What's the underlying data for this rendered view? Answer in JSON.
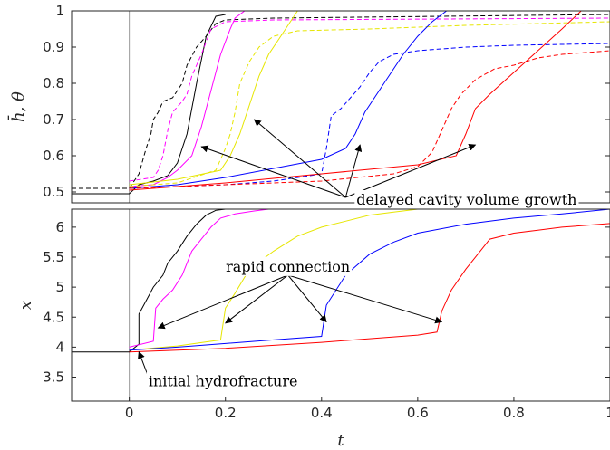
{
  "chart_data": [
    {
      "type": "line",
      "panel": "top",
      "xlabel": "",
      "ylabel": "h̄, θ",
      "xlim": [
        -0.12,
        1.0
      ],
      "ylim": [
        0.47,
        1.0
      ],
      "yticks": [
        0.5,
        0.6,
        0.7,
        0.8,
        0.9,
        1
      ],
      "ytick_labels": [
        "0.5",
        "0.6",
        "0.7",
        "0.8",
        "0.9",
        "1"
      ],
      "vline_x": 0,
      "series": [
        {
          "color": "#000000",
          "style": "solid",
          "x": [
            -0.12,
            0,
            0.02,
            0.05,
            0.08,
            0.1,
            0.12,
            0.14,
            0.16,
            0.18,
            0.2
          ],
          "y": [
            0.495,
            0.495,
            0.52,
            0.53,
            0.545,
            0.58,
            0.66,
            0.8,
            0.93,
            0.985,
            0.99
          ]
        },
        {
          "color": "#000000",
          "style": "dashed",
          "x": [
            -0.12,
            0,
            0.02,
            0.035,
            0.045,
            0.05,
            0.06,
            0.07,
            0.09,
            0.11,
            0.12,
            0.14,
            0.16,
            0.18,
            0.2,
            0.3,
            1.0
          ],
          "y": [
            0.51,
            0.51,
            0.55,
            0.62,
            0.66,
            0.7,
            0.72,
            0.75,
            0.76,
            0.8,
            0.85,
            0.9,
            0.93,
            0.965,
            0.975,
            0.98,
            0.99
          ]
        },
        {
          "color": "#ff00ff",
          "style": "solid",
          "x": [
            0,
            0.05,
            0.08,
            0.1,
            0.13,
            0.15,
            0.17,
            0.19,
            0.21,
            0.22,
            0.24
          ],
          "y": [
            0.515,
            0.52,
            0.54,
            0.56,
            0.6,
            0.68,
            0.78,
            0.88,
            0.95,
            0.98,
            1.0
          ]
        },
        {
          "color": "#ff00ff",
          "style": "dashed",
          "x": [
            0,
            0.05,
            0.06,
            0.07,
            0.08,
            0.09,
            0.11,
            0.12,
            0.13,
            0.15,
            0.17,
            0.2,
            0.3,
            1.0
          ],
          "y": [
            0.53,
            0.54,
            0.56,
            0.6,
            0.67,
            0.72,
            0.75,
            0.77,
            0.82,
            0.88,
            0.95,
            0.97,
            0.975,
            0.98
          ]
        },
        {
          "color": "#e6e600",
          "style": "solid",
          "x": [
            0,
            0.1,
            0.19,
            0.21,
            0.23,
            0.25,
            0.27,
            0.29,
            0.31,
            0.33,
            0.35
          ],
          "y": [
            0.52,
            0.535,
            0.56,
            0.6,
            0.66,
            0.74,
            0.82,
            0.88,
            0.92,
            0.96,
            1.0
          ]
        },
        {
          "color": "#e6e600",
          "style": "dashed",
          "x": [
            0,
            0.1,
            0.18,
            0.2,
            0.21,
            0.22,
            0.23,
            0.25,
            0.27,
            0.3,
            0.35,
            0.5,
            0.7,
            1.0
          ],
          "y": [
            0.515,
            0.525,
            0.56,
            0.62,
            0.66,
            0.72,
            0.8,
            0.86,
            0.9,
            0.93,
            0.945,
            0.95,
            0.96,
            0.97
          ]
        },
        {
          "color": "#0000ff",
          "style": "solid",
          "x": [
            0,
            0.1,
            0.2,
            0.3,
            0.4,
            0.45,
            0.47,
            0.49,
            0.51,
            0.54,
            0.57,
            0.6,
            0.63,
            0.66
          ],
          "y": [
            0.51,
            0.52,
            0.54,
            0.565,
            0.59,
            0.62,
            0.66,
            0.72,
            0.76,
            0.82,
            0.88,
            0.93,
            0.97,
            1.0
          ]
        },
        {
          "color": "#0000ff",
          "style": "dashed",
          "x": [
            0,
            0.1,
            0.2,
            0.3,
            0.4,
            0.41,
            0.42,
            0.44,
            0.46,
            0.48,
            0.5,
            0.52,
            0.55,
            0.6,
            0.7,
            0.8,
            1.0
          ],
          "y": [
            0.51,
            0.515,
            0.52,
            0.53,
            0.55,
            0.62,
            0.71,
            0.73,
            0.76,
            0.79,
            0.83,
            0.86,
            0.88,
            0.89,
            0.9,
            0.905,
            0.91
          ]
        },
        {
          "color": "#ff0000",
          "style": "solid",
          "x": [
            0,
            0.2,
            0.4,
            0.6,
            0.68,
            0.7,
            0.72,
            0.75,
            0.8,
            0.85,
            0.9,
            0.94
          ],
          "y": [
            0.505,
            0.525,
            0.55,
            0.575,
            0.6,
            0.66,
            0.73,
            0.77,
            0.83,
            0.89,
            0.95,
            1.0
          ]
        },
        {
          "color": "#ff0000",
          "style": "dashed",
          "x": [
            0,
            0.2,
            0.4,
            0.55,
            0.6,
            0.63,
            0.65,
            0.67,
            0.69,
            0.72,
            0.76,
            0.8,
            0.85,
            0.9,
            1.0
          ],
          "y": [
            0.51,
            0.52,
            0.53,
            0.55,
            0.57,
            0.61,
            0.67,
            0.73,
            0.77,
            0.81,
            0.84,
            0.85,
            0.87,
            0.88,
            0.89
          ]
        }
      ],
      "annotation": {
        "text": "delayed cavity volume growth",
        "anchor": [
          0.45,
          0.485
        ],
        "targets": [
          [
            0.15,
            0.625
          ],
          [
            0.26,
            0.7
          ],
          [
            0.48,
            0.63
          ],
          [
            0.72,
            0.63
          ]
        ]
      }
    },
    {
      "type": "line",
      "panel": "bottom",
      "xlabel": "t",
      "ylabel": "x",
      "xlim": [
        -0.12,
        1.0
      ],
      "ylim": [
        3.1,
        6.3
      ],
      "xticks": [
        0,
        0.2,
        0.4,
        0.6,
        0.8,
        1
      ],
      "xtick_labels": [
        "0",
        "0.2",
        "0.4",
        "0.6",
        "0.8",
        "1"
      ],
      "yticks": [
        3.5,
        4,
        4.5,
        5,
        5.5,
        6
      ],
      "ytick_labels": [
        "3.5",
        "4",
        "4.5",
        "5",
        "5.5",
        "6"
      ],
      "vline_x": 0,
      "series": [
        {
          "color": "#000000",
          "x": [
            -0.12,
            0,
            0.02,
            0.02,
            0.04,
            0.05,
            0.07,
            0.08,
            0.1,
            0.12,
            0.14,
            0.16,
            0.18,
            0.2
          ],
          "y": [
            3.92,
            3.92,
            4.05,
            4.55,
            4.85,
            5.0,
            5.2,
            5.4,
            5.6,
            5.85,
            6.05,
            6.2,
            6.28,
            6.3
          ]
        },
        {
          "color": "#ff00ff",
          "x": [
            0,
            0.05,
            0.055,
            0.07,
            0.09,
            0.11,
            0.13,
            0.15,
            0.17,
            0.19,
            0.22,
            0.26,
            0.29
          ],
          "y": [
            4.0,
            4.1,
            4.65,
            4.8,
            4.95,
            5.2,
            5.6,
            5.8,
            6.0,
            6.15,
            6.22,
            6.27,
            6.3
          ]
        },
        {
          "color": "#e6e600",
          "x": [
            0,
            0.1,
            0.19,
            0.2,
            0.22,
            0.25,
            0.3,
            0.35,
            0.4,
            0.45,
            0.5,
            0.55,
            0.6
          ],
          "y": [
            3.95,
            4.02,
            4.12,
            4.65,
            4.9,
            5.3,
            5.6,
            5.85,
            6.0,
            6.1,
            6.2,
            6.25,
            6.3
          ]
        },
        {
          "color": "#0000ff",
          "x": [
            0,
            0.1,
            0.2,
            0.3,
            0.4,
            0.41,
            0.45,
            0.5,
            0.55,
            0.6,
            0.7,
            0.8,
            0.9,
            1.0
          ],
          "y": [
            3.95,
            4.0,
            4.06,
            4.12,
            4.18,
            4.7,
            5.2,
            5.55,
            5.75,
            5.9,
            6.05,
            6.15,
            6.22,
            6.3
          ]
        },
        {
          "color": "#ff0000",
          "x": [
            0,
            0.2,
            0.4,
            0.6,
            0.64,
            0.65,
            0.67,
            0.7,
            0.73,
            0.75,
            0.8,
            0.85,
            0.9,
            1.0
          ],
          "y": [
            3.92,
            3.98,
            4.08,
            4.2,
            4.25,
            4.6,
            4.95,
            5.3,
            5.6,
            5.8,
            5.9,
            5.95,
            6.0,
            6.06
          ]
        }
      ],
      "annotations": [
        {
          "text": "rapid connection",
          "anchor": [
            0.33,
            5.2
          ],
          "targets": [
            [
              0.06,
              4.32
            ],
            [
              0.2,
              4.4
            ],
            [
              0.41,
              4.42
            ],
            [
              0.65,
              4.42
            ]
          ]
        },
        {
          "text": "initial hydrofracture",
          "anchor": [
            0.04,
            3.5
          ],
          "targets": [
            [
              0.02,
              3.92
            ]
          ]
        }
      ]
    }
  ]
}
